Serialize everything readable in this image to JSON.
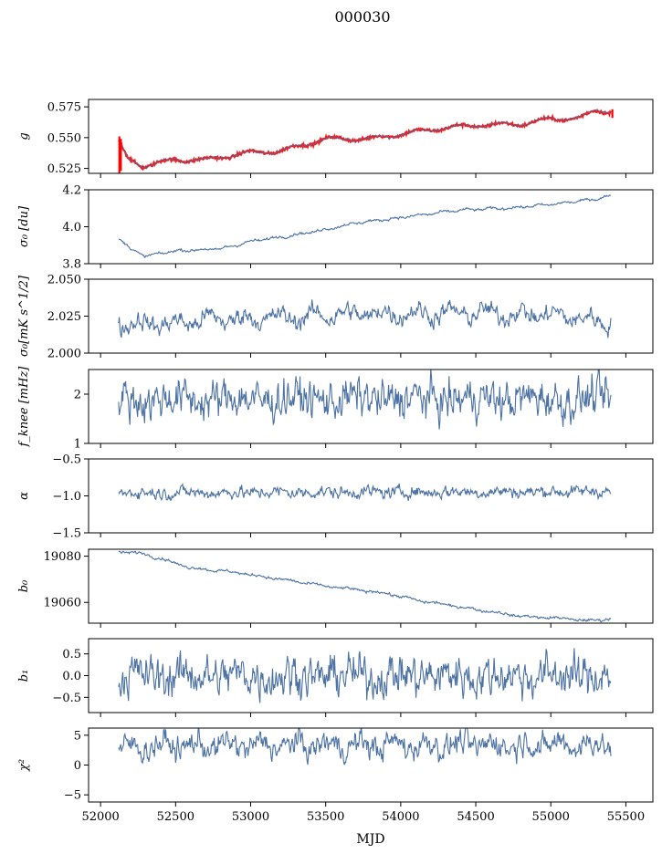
{
  "figure": {
    "title": "000030",
    "xlabel": "MJD",
    "x_ticks": [
      52000,
      52500,
      53000,
      53500,
      54000,
      54500,
      55000,
      55500
    ],
    "xlim": [
      51920,
      55680
    ]
  },
  "colors": {
    "series": "#4c72a3",
    "overlay": "#ff0000",
    "axis": "#000000"
  },
  "chart_data": [
    {
      "type": "line",
      "id": "g",
      "ylabel": "g",
      "ylim": [
        0.521,
        0.581
      ],
      "yticks": [
        0.525,
        0.55,
        0.575
      ],
      "ytick_labels": [
        "0.525",
        "0.550",
        "0.575"
      ],
      "x_range": [
        52120,
        55400
      ],
      "trend": [
        [
          52120,
          0.547
        ],
        [
          52180,
          0.533
        ],
        [
          52280,
          0.527
        ],
        [
          52500,
          0.532
        ],
        [
          52700,
          0.532
        ],
        [
          53000,
          0.538
        ],
        [
          53200,
          0.539
        ],
        [
          53500,
          0.549
        ],
        [
          53800,
          0.549
        ],
        [
          54000,
          0.553
        ],
        [
          54300,
          0.558
        ],
        [
          54500,
          0.56
        ],
        [
          54800,
          0.561
        ],
        [
          55000,
          0.565
        ],
        [
          55200,
          0.566
        ],
        [
          55300,
          0.572
        ],
        [
          55400,
          0.571
        ]
      ],
      "ripple_amp": 0.0015,
      "ripple_period": 280,
      "noise": 0.0004,
      "overlay": {
        "name": "",
        "noise": 0.0012,
        "spikes": [
          [
            52125,
            0.551,
            0.521
          ],
          [
            52135,
            0.549,
            0.523
          ],
          [
            55410,
            0.573,
            0.566
          ]
        ]
      }
    },
    {
      "type": "line",
      "id": "sigma0",
      "ylabel": "σ₀ [du]",
      "ylim": [
        3.8,
        4.2
      ],
      "yticks": [
        3.8,
        4.0,
        4.2
      ],
      "ytick_labels": [
        "3.8",
        "4.0",
        "4.2"
      ],
      "x_range": [
        52120,
        55400
      ],
      "trend": [
        [
          52120,
          3.94
        ],
        [
          52200,
          3.88
        ],
        [
          52300,
          3.84
        ],
        [
          52500,
          3.87
        ],
        [
          52800,
          3.88
        ],
        [
          53000,
          3.92
        ],
        [
          53400,
          3.97
        ],
        [
          53700,
          4.02
        ],
        [
          54000,
          4.05
        ],
        [
          54400,
          4.09
        ],
        [
          54700,
          4.1
        ],
        [
          55000,
          4.12
        ],
        [
          55300,
          4.15
        ],
        [
          55400,
          4.17
        ]
      ],
      "ripple_amp": 0.004,
      "ripple_period": 160,
      "noise": 0.003
    },
    {
      "type": "line",
      "id": "sigma0-mks",
      "ylabel": "σ₀[mK s^1/2]",
      "ylim": [
        2.0,
        2.05
      ],
      "yticks": [
        2.0,
        2.025,
        2.05
      ],
      "ytick_labels": [
        "2.000",
        "2.025",
        "2.050"
      ],
      "x_range": [
        52120,
        55400
      ],
      "trend": [
        [
          52120,
          2.02
        ],
        [
          52500,
          2.02
        ],
        [
          52700,
          2.023
        ],
        [
          53300,
          2.024
        ],
        [
          53500,
          2.026
        ],
        [
          54000,
          2.027
        ],
        [
          54500,
          2.027
        ],
        [
          55000,
          2.026
        ],
        [
          55400,
          2.021
        ]
      ],
      "ripple_amp": 0.003,
      "ripple_period": 230,
      "noise": 0.0026
    },
    {
      "type": "line",
      "id": "fknee",
      "ylabel": "f_knee [mHz]",
      "ylim": [
        1.0,
        2.5
      ],
      "yticks": [
        1,
        2
      ],
      "ytick_labels": [
        "1",
        "2"
      ],
      "x_range": [
        52120,
        55400
      ],
      "trend": [
        [
          52120,
          1.9
        ],
        [
          55400,
          1.9
        ]
      ],
      "ripple_amp": 0.05,
      "ripple_period": 400,
      "noise": 0.17
    },
    {
      "type": "line",
      "id": "alpha",
      "ylabel": "α",
      "ylim": [
        -1.5,
        -0.5
      ],
      "yticks": [
        -1.5,
        -1.0,
        -0.5
      ],
      "ytick_labels": [
        "−1.5",
        "−1.0",
        "−0.5"
      ],
      "x_range": [
        52120,
        55400
      ],
      "trend": [
        [
          52120,
          -0.96
        ],
        [
          55400,
          -0.94
        ]
      ],
      "ripple_amp": 0.01,
      "ripple_period": 300,
      "noise": 0.035
    },
    {
      "type": "line",
      "id": "b0",
      "ylabel": "b₀",
      "ylim": [
        19051,
        19083
      ],
      "yticks": [
        19060,
        19080
      ],
      "ytick_labels": [
        "19060",
        "19080"
      ],
      "x_range": [
        52120,
        55400
      ],
      "trend": [
        [
          52120,
          19082
        ],
        [
          52300,
          19081
        ],
        [
          52600,
          19075
        ],
        [
          52900,
          19073
        ],
        [
          53200,
          19070
        ],
        [
          53500,
          19067
        ],
        [
          53900,
          19064
        ],
        [
          54100,
          19061
        ],
        [
          54500,
          19057
        ],
        [
          54800,
          19054
        ],
        [
          55100,
          19053
        ],
        [
          55250,
          19052
        ],
        [
          55400,
          19053
        ]
      ],
      "ripple_amp": 0.3,
      "ripple_period": 200,
      "noise": 0.25
    },
    {
      "type": "line",
      "id": "b1",
      "ylabel": "b₁",
      "ylim": [
        -0.85,
        0.85
      ],
      "yticks": [
        -0.5,
        0.0,
        0.5
      ],
      "ytick_labels": [
        "−0.5",
        "0.0",
        "0.5"
      ],
      "x_range": [
        52120,
        55400
      ],
      "trend": [
        [
          52120,
          0.0
        ],
        [
          55400,
          0.0
        ]
      ],
      "ripple_amp": 0.05,
      "ripple_period": 350,
      "noise": 0.2
    },
    {
      "type": "line",
      "id": "chi2",
      "ylabel": "χ²",
      "ylim": [
        -6.2,
        6.2
      ],
      "yticks": [
        -5,
        0,
        5
      ],
      "ytick_labels": [
        "−5",
        "0",
        "5"
      ],
      "x_range": [
        52120,
        55400
      ],
      "trend": [
        [
          52120,
          2.5
        ],
        [
          52300,
          3.2
        ],
        [
          55400,
          3.5
        ]
      ],
      "ripple_amp": 0.7,
      "ripple_period": 220,
      "noise": 0.9
    }
  ]
}
